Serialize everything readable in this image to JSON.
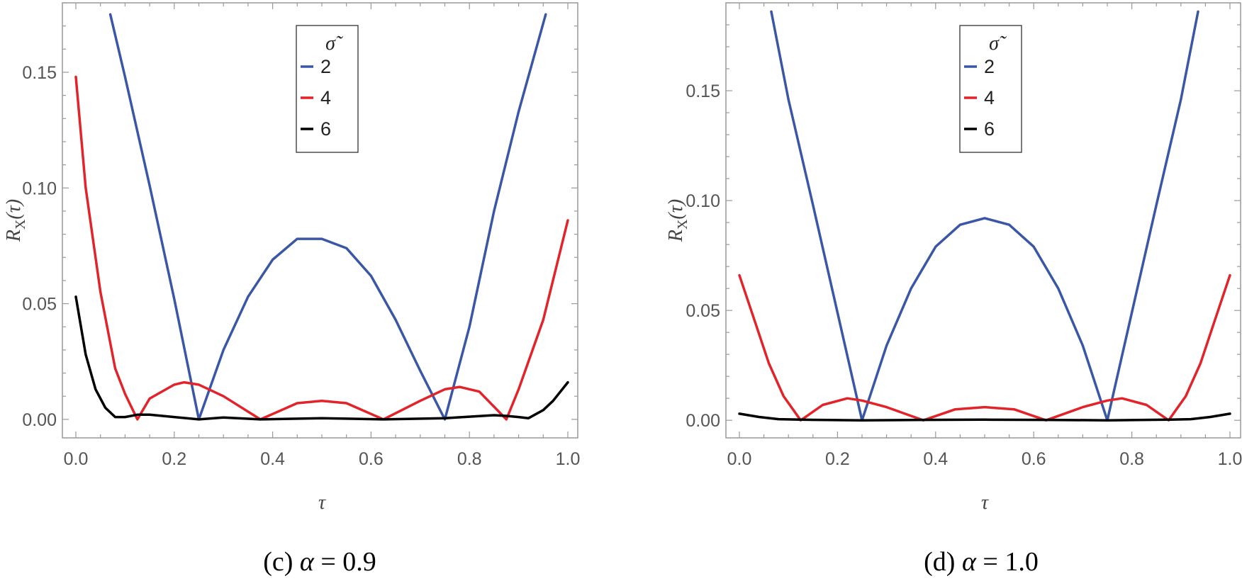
{
  "chart_data": [
    {
      "type": "line",
      "panel": "c",
      "caption_prefix": "(c)",
      "caption_var": "α",
      "caption_eq": "= 0.9",
      "xlabel": "τ",
      "ylabel_main": "R",
      "ylabel_sub": "X",
      "ylabel_arg": "(τ)",
      "xlim": [
        0,
        1.0
      ],
      "ylim": [
        -0.008,
        0.18
      ],
      "xticks": [
        0.0,
        0.2,
        0.4,
        0.6,
        0.8,
        1.0
      ],
      "xtick_labels": [
        "0.0",
        "0.2",
        "0.4",
        "0.6",
        "0.8",
        "1.0"
      ],
      "yticks": [
        0.0,
        0.05,
        0.1,
        0.15
      ],
      "ytick_labels": [
        "0.00",
        "0.05",
        "0.10",
        "0.15"
      ],
      "legend": {
        "title": "σ̃",
        "position": "top-center"
      },
      "series": [
        {
          "name": "2",
          "color": "#3a57a7",
          "x": [
            0.07,
            0.1,
            0.15,
            0.2,
            0.25,
            0.3,
            0.35,
            0.4,
            0.45,
            0.5,
            0.55,
            0.6,
            0.65,
            0.7,
            0.75,
            0.8,
            0.85,
            0.9,
            0.955
          ],
          "y": [
            0.175,
            0.148,
            0.101,
            0.052,
            0.0,
            0.03,
            0.053,
            0.069,
            0.078,
            0.078,
            0.074,
            0.062,
            0.043,
            0.021,
            0.0,
            0.04,
            0.09,
            0.133,
            0.175
          ]
        },
        {
          "name": "4",
          "color": "#e2242a",
          "x": [
            0.0,
            0.02,
            0.05,
            0.08,
            0.1,
            0.125,
            0.15,
            0.2,
            0.22,
            0.25,
            0.3,
            0.375,
            0.45,
            0.5,
            0.55,
            0.625,
            0.7,
            0.75,
            0.78,
            0.82,
            0.875,
            0.9,
            0.95,
            1.0
          ],
          "y": [
            0.148,
            0.1,
            0.055,
            0.022,
            0.011,
            0.0,
            0.009,
            0.015,
            0.016,
            0.015,
            0.01,
            0.0,
            0.007,
            0.008,
            0.007,
            0.0,
            0.008,
            0.013,
            0.014,
            0.012,
            0.0,
            0.013,
            0.043,
            0.086
          ]
        },
        {
          "name": "6",
          "color": "#000000",
          "x": [
            0.0,
            0.02,
            0.04,
            0.06,
            0.08,
            0.1,
            0.125,
            0.15,
            0.25,
            0.3,
            0.375,
            0.5,
            0.625,
            0.75,
            0.85,
            0.875,
            0.9,
            0.92,
            0.95,
            0.97,
            1.0
          ],
          "y": [
            0.053,
            0.028,
            0.013,
            0.005,
            0.001,
            0.001,
            0.002,
            0.002,
            0.0,
            0.0008,
            0.0,
            0.0005,
            0.0,
            0.0005,
            0.0018,
            0.0015,
            0.001,
            0.0005,
            0.004,
            0.008,
            0.016
          ]
        }
      ]
    },
    {
      "type": "line",
      "panel": "d",
      "caption_prefix": "(d)",
      "caption_var": "α",
      "caption_eq": "= 1.0",
      "xlabel": "τ",
      "ylabel_main": "R",
      "ylabel_sub": "X",
      "ylabel_arg": "(τ)",
      "xlim": [
        0,
        1.0
      ],
      "ylim": [
        -0.008,
        0.19
      ],
      "xticks": [
        0.0,
        0.2,
        0.4,
        0.6,
        0.8,
        1.0
      ],
      "xtick_labels": [
        "0.0",
        "0.2",
        "0.4",
        "0.6",
        "0.8",
        "1.0"
      ],
      "yticks": [
        0.0,
        0.05,
        0.1,
        0.15
      ],
      "ytick_labels": [
        "0.00",
        "0.05",
        "0.10",
        "0.15"
      ],
      "legend": {
        "title": "σ̃",
        "position": "top-center"
      },
      "series": [
        {
          "name": "2",
          "color": "#3a57a7",
          "x": [
            0.065,
            0.1,
            0.15,
            0.2,
            0.25,
            0.3,
            0.35,
            0.4,
            0.45,
            0.5,
            0.55,
            0.6,
            0.65,
            0.7,
            0.75,
            0.8,
            0.85,
            0.9,
            0.935
          ],
          "y": [
            0.186,
            0.146,
            0.098,
            0.049,
            0.0,
            0.034,
            0.06,
            0.079,
            0.089,
            0.092,
            0.089,
            0.079,
            0.06,
            0.034,
            0.0,
            0.049,
            0.098,
            0.146,
            0.186
          ]
        },
        {
          "name": "4",
          "color": "#e2242a",
          "x": [
            0.0,
            0.03,
            0.06,
            0.09,
            0.125,
            0.17,
            0.22,
            0.25,
            0.3,
            0.375,
            0.44,
            0.5,
            0.56,
            0.625,
            0.7,
            0.75,
            0.78,
            0.83,
            0.875,
            0.91,
            0.94,
            0.97,
            1.0
          ],
          "y": [
            0.066,
            0.046,
            0.026,
            0.011,
            0.0,
            0.007,
            0.01,
            0.009,
            0.006,
            0.0,
            0.005,
            0.006,
            0.005,
            0.0,
            0.006,
            0.009,
            0.01,
            0.007,
            0.0,
            0.011,
            0.026,
            0.046,
            0.066
          ]
        },
        {
          "name": "6",
          "color": "#000000",
          "x": [
            0.0,
            0.04,
            0.08,
            0.125,
            0.25,
            0.375,
            0.5,
            0.625,
            0.75,
            0.875,
            0.92,
            0.96,
            1.0
          ],
          "y": [
            0.003,
            0.0015,
            0.0005,
            0.0003,
            0.0,
            0.0002,
            0.0003,
            0.0002,
            0.0,
            0.0003,
            0.0005,
            0.0015,
            0.003
          ]
        }
      ]
    }
  ]
}
